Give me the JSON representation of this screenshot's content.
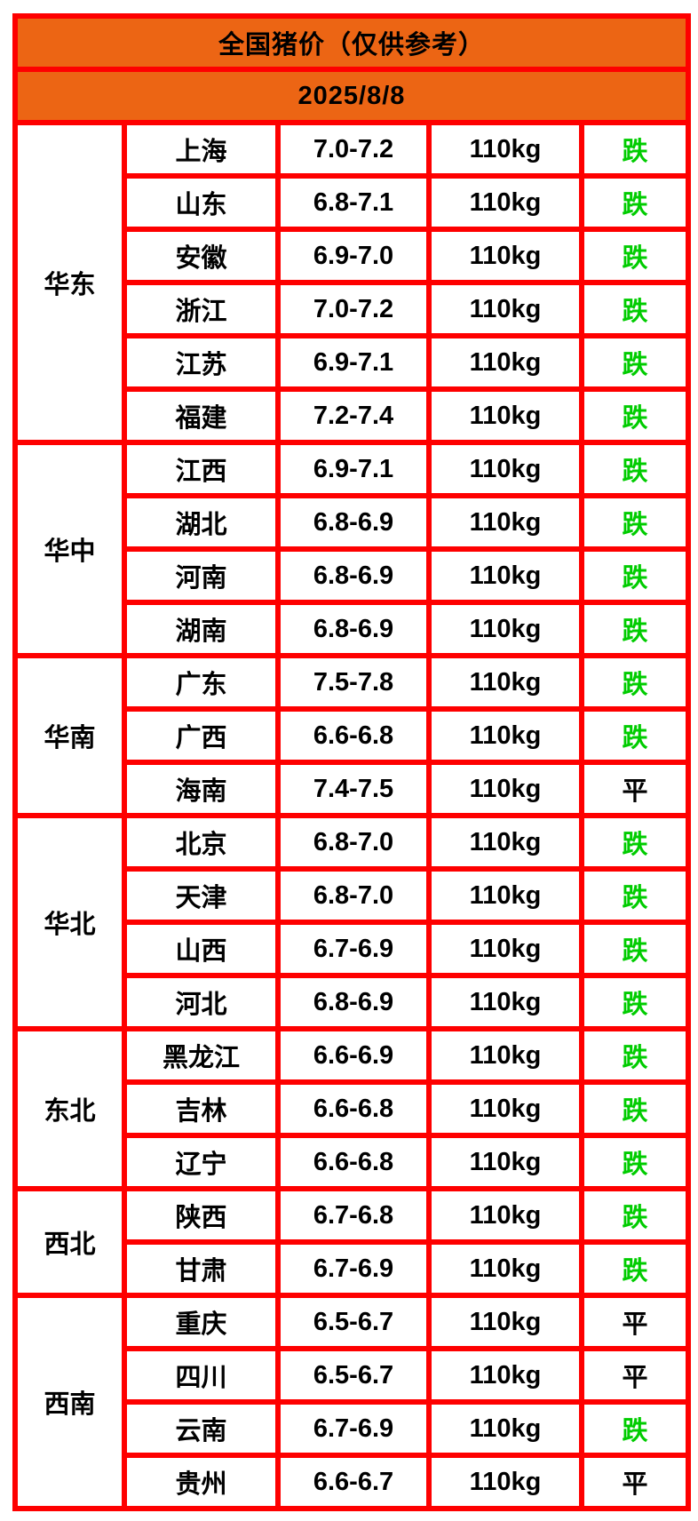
{
  "header": {
    "title": "全国猪价（仅供参考）",
    "date": "2025/8/8"
  },
  "colors": {
    "accent_orange": "#EC6514",
    "border_red": "#FE0000",
    "trend_down_green": "#00CC00",
    "text_black": "#000000"
  },
  "columns": [
    "region",
    "province",
    "price",
    "weight",
    "trend"
  ],
  "regions": [
    {
      "name": "华东",
      "rows": [
        {
          "province": "上海",
          "price": "7.0-7.2",
          "weight": "110kg",
          "trend": "跌"
        },
        {
          "province": "山东",
          "price": "6.8-7.1",
          "weight": "110kg",
          "trend": "跌"
        },
        {
          "province": "安徽",
          "price": "6.9-7.0",
          "weight": "110kg",
          "trend": "跌"
        },
        {
          "province": "浙江",
          "price": "7.0-7.2",
          "weight": "110kg",
          "trend": "跌"
        },
        {
          "province": "江苏",
          "price": "6.9-7.1",
          "weight": "110kg",
          "trend": "跌"
        },
        {
          "province": "福建",
          "price": "7.2-7.4",
          "weight": "110kg",
          "trend": "跌"
        }
      ]
    },
    {
      "name": "华中",
      "rows": [
        {
          "province": "江西",
          "price": "6.9-7.1",
          "weight": "110kg",
          "trend": "跌"
        },
        {
          "province": "湖北",
          "price": "6.8-6.9",
          "weight": "110kg",
          "trend": "跌"
        },
        {
          "province": "河南",
          "price": "6.8-6.9",
          "weight": "110kg",
          "trend": "跌"
        },
        {
          "province": "湖南",
          "price": "6.8-6.9",
          "weight": "110kg",
          "trend": "跌"
        }
      ]
    },
    {
      "name": "华南",
      "rows": [
        {
          "province": "广东",
          "price": "7.5-7.8",
          "weight": "110kg",
          "trend": "跌"
        },
        {
          "province": "广西",
          "price": "6.6-6.8",
          "weight": "110kg",
          "trend": "跌"
        },
        {
          "province": "海南",
          "price": "7.4-7.5",
          "weight": "110kg",
          "trend": "平"
        }
      ]
    },
    {
      "name": "华北",
      "rows": [
        {
          "province": "北京",
          "price": "6.8-7.0",
          "weight": "110kg",
          "trend": "跌"
        },
        {
          "province": "天津",
          "price": "6.8-7.0",
          "weight": "110kg",
          "trend": "跌"
        },
        {
          "province": "山西",
          "price": "6.7-6.9",
          "weight": "110kg",
          "trend": "跌"
        },
        {
          "province": "河北",
          "price": "6.8-6.9",
          "weight": "110kg",
          "trend": "跌"
        }
      ]
    },
    {
      "name": "东北",
      "rows": [
        {
          "province": "黑龙江",
          "price": "6.6-6.9",
          "weight": "110kg",
          "trend": "跌"
        },
        {
          "province": "吉林",
          "price": "6.6-6.8",
          "weight": "110kg",
          "trend": "跌"
        },
        {
          "province": "辽宁",
          "price": "6.6-6.8",
          "weight": "110kg",
          "trend": "跌"
        }
      ]
    },
    {
      "name": "西北",
      "rows": [
        {
          "province": "陕西",
          "price": "6.7-6.8",
          "weight": "110kg",
          "trend": "跌"
        },
        {
          "province": "甘肃",
          "price": "6.7-6.9",
          "weight": "110kg",
          "trend": "跌"
        }
      ]
    },
    {
      "name": "西南",
      "rows": [
        {
          "province": "重庆",
          "price": "6.5-6.7",
          "weight": "110kg",
          "trend": "平"
        },
        {
          "province": "四川",
          "price": "6.5-6.7",
          "weight": "110kg",
          "trend": "平"
        },
        {
          "province": "云南",
          "price": "6.7-6.9",
          "weight": "110kg",
          "trend": "跌"
        },
        {
          "province": "贵州",
          "price": "6.6-6.7",
          "weight": "110kg",
          "trend": "平"
        }
      ]
    }
  ]
}
